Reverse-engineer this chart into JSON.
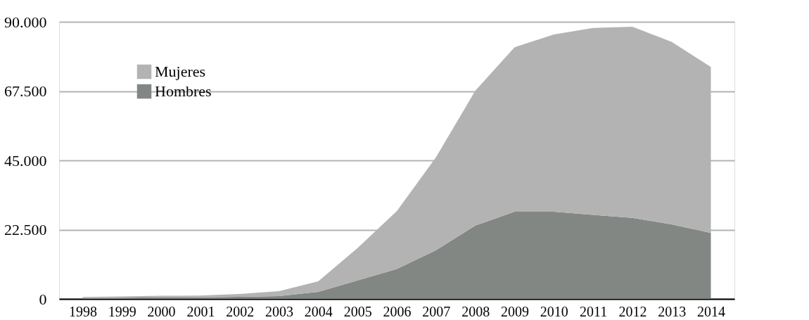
{
  "chart_data": {
    "type": "area",
    "stacked": true,
    "categories": [
      "1998",
      "1999",
      "2000",
      "2001",
      "2002",
      "2003",
      "2004",
      "2005",
      "2006",
      "2007",
      "2008",
      "2009",
      "2010",
      "2011",
      "2012",
      "2013",
      "2014"
    ],
    "series": [
      {
        "name": "Hombres",
        "color": "#828784",
        "values": [
          300,
          400,
          500,
          500,
          700,
          900,
          2300,
          6000,
          9700,
          15800,
          23800,
          28300,
          28300,
          27300,
          26300,
          24200,
          21400
        ]
      },
      {
        "name": "Mujeres",
        "color": "#b3b3b3",
        "values": [
          300,
          400,
          500,
          600,
          900,
          1600,
          3400,
          10500,
          18800,
          30200,
          43800,
          53400,
          57600,
          60700,
          62100,
          59300,
          53900
        ]
      }
    ],
    "ylim": [
      0,
      90000
    ],
    "yticks": [
      0,
      {
        "value": 22500,
        "label": "22.500"
      },
      {
        "value": 45000,
        "label": "45.000"
      },
      {
        "value": 67500,
        "label": "67.500"
      },
      {
        "value": 90000,
        "label": "90.000"
      }
    ],
    "grid": "y",
    "legend": "top left"
  }
}
